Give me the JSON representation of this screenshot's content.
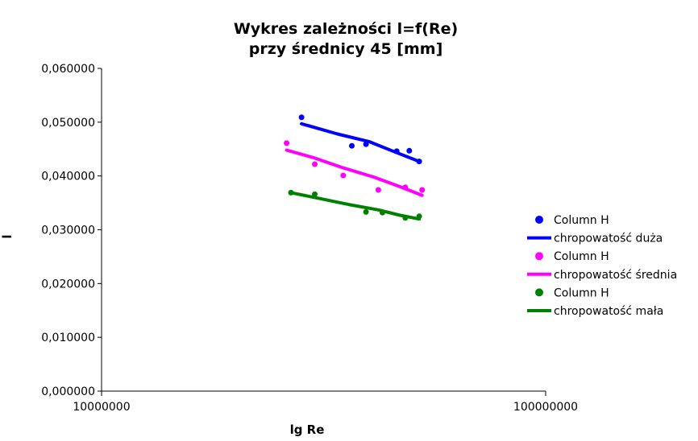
{
  "chart_data": {
    "type": "scatter",
    "title": "Wykres zależności l=f(Re)",
    "subtitle": "przy średnicy 45 [mm]",
    "xlabel": "lg Re",
    "ylabel": "l",
    "xscale": "log",
    "xlim": [
      10000000,
      100000000
    ],
    "ylim": [
      0,
      0.06
    ],
    "x_ticks": [
      "10000000",
      "100000000"
    ],
    "y_ticks": [
      "0,000000",
      "0,010000",
      "0,020000",
      "0,030000",
      "0,040000",
      "0,050000",
      "0,060000"
    ],
    "grid": false,
    "legend_position": "right",
    "series": [
      {
        "name": "Column H",
        "kind": "points",
        "color": "#0000ff",
        "x": [
          28200000,
          36600000,
          39400000,
          46200000,
          49300000,
          51900000
        ],
        "y": [
          0.0509,
          0.0456,
          0.0459,
          0.0446,
          0.0447,
          0.0427
        ]
      },
      {
        "name": "chropowatość duża",
        "kind": "line",
        "color": "#0000ff",
        "x": [
          28200000,
          34000000,
          40000000,
          46000000,
          51900000
        ],
        "y": [
          0.0497,
          0.0478,
          0.0464,
          0.0444,
          0.0427
        ]
      },
      {
        "name": "Column H",
        "kind": "points",
        "color": "#ff00ff",
        "x": [
          26100000,
          30200000,
          35000000,
          42000000,
          48300000,
          52700000
        ],
        "y": [
          0.0461,
          0.0422,
          0.0401,
          0.0374,
          0.0379,
          0.0374
        ]
      },
      {
        "name": "chropowatość średnia",
        "kind": "line",
        "color": "#ff00ff",
        "x": [
          26100000,
          30000000,
          35000000,
          41000000,
          47000000,
          52700000
        ],
        "y": [
          0.0448,
          0.0434,
          0.0415,
          0.0398,
          0.038,
          0.0364
        ]
      },
      {
        "name": "Column H",
        "kind": "points",
        "color": "#008000",
        "x": [
          26700000,
          30200000,
          39400000,
          42900000,
          48300000,
          51900000
        ],
        "y": [
          0.0369,
          0.0366,
          0.0333,
          0.0332,
          0.0322,
          0.0325
        ]
      },
      {
        "name": "chropowatość mała",
        "kind": "line",
        "color": "#008000",
        "x": [
          26700000,
          31000000,
          36000000,
          42000000,
          47000000,
          51900000
        ],
        "y": [
          0.0369,
          0.0358,
          0.0347,
          0.0337,
          0.0327,
          0.032
        ]
      }
    ]
  }
}
